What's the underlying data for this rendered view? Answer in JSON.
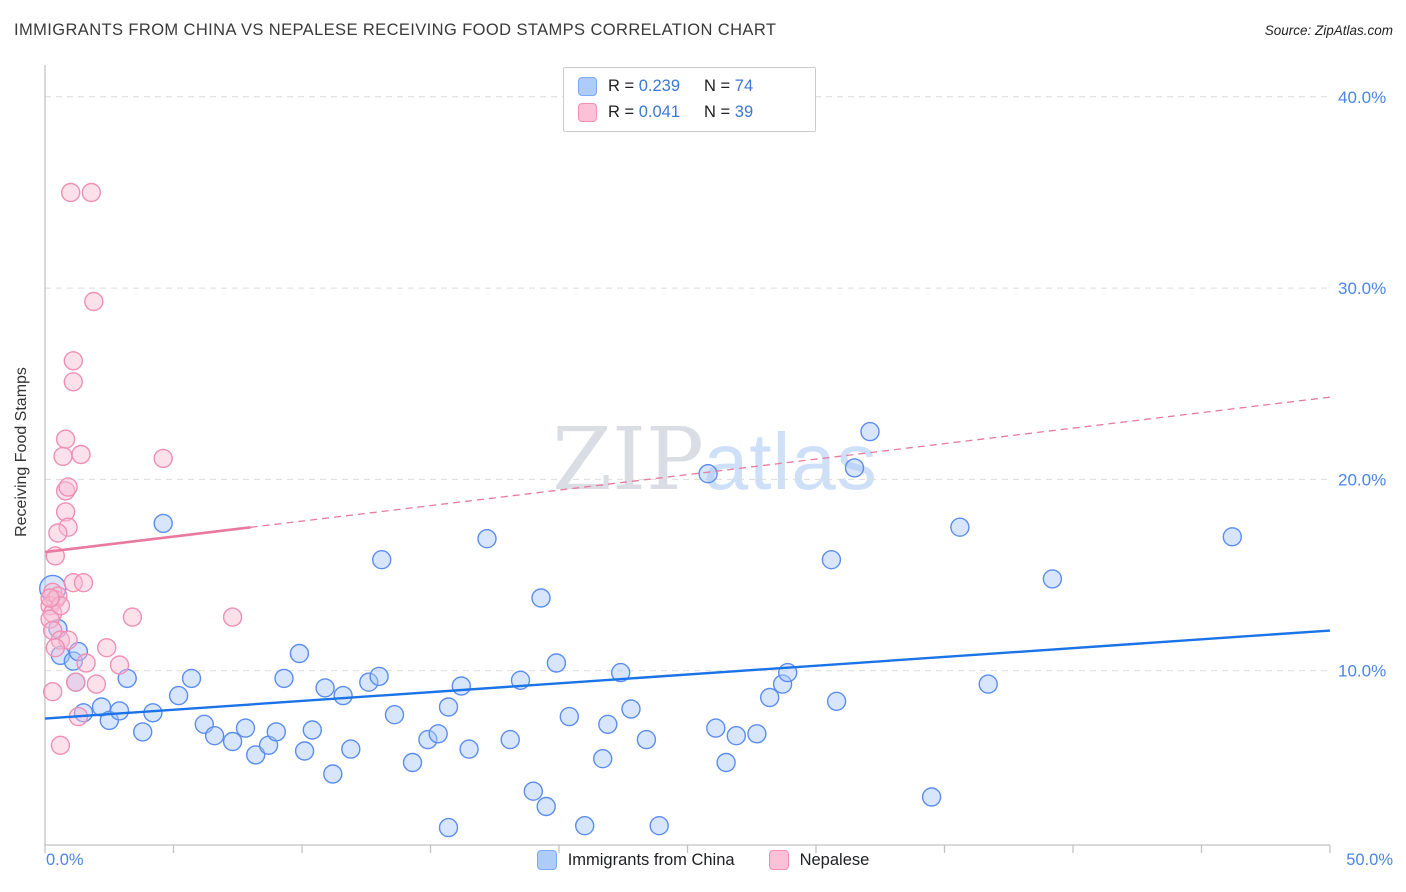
{
  "title": "IMMIGRANTS FROM CHINA VS NEPALESE RECEIVING FOOD STAMPS CORRELATION CHART",
  "source": "Source: ZipAtlas.com",
  "watermark": {
    "zip": "ZIP",
    "atlas": "atlas"
  },
  "colors": {
    "accent_blue": "#4a86e8",
    "grid": "#dcdcdc",
    "axis": "#c2c2c2",
    "trend_blue": "#1a73e8",
    "trend_pink": "#e8799f",
    "point_blue_fill": "#a8c7fa",
    "point_blue_stroke": "#5b8def",
    "point_pink_fill": "#f9bdd3",
    "point_pink_stroke": "#ef8fb4"
  },
  "legend": {
    "rows": [
      {
        "r_prefix": "R = ",
        "r_value": "0.239",
        "n_prefix": "N = ",
        "n_value": "74"
      },
      {
        "r_prefix": "R = ",
        "r_value": "0.041",
        "n_prefix": "N = ",
        "n_value": "39"
      }
    ]
  },
  "axes": {
    "x_min_label": "0.0%",
    "x_max_label": "50.0%"
  },
  "chart_data": {
    "type": "scatter",
    "title": "IMMIGRANTS FROM CHINA VS NEPALESE RECEIVING FOOD STAMPS CORRELATION CHART",
    "xlabel": "",
    "ylabel": "Receiving Food Stamps",
    "xlim": [
      0,
      50
    ],
    "ylim": [
      0,
      42
    ],
    "x_tick_step": 5,
    "grid": "dashed-horizontal",
    "legend_position": "bottom-center",
    "y_ticks": [
      {
        "value": 10,
        "label": "10.0%"
      },
      {
        "value": 20,
        "label": "20.0%"
      },
      {
        "value": 30,
        "label": "30.0%"
      },
      {
        "value": 40,
        "label": "40.0%"
      }
    ],
    "series": [
      {
        "name": "Immigrants from China",
        "key": "china",
        "r": 0.239,
        "n": 74,
        "fill": "#a8c7fa",
        "stroke": "#5b8def",
        "trend": {
          "x0": 0,
          "y0": 7.5,
          "x1": 50,
          "y1": 12.1,
          "style": "solid"
        },
        "points": [
          [
            0.3,
            14.3,
            13
          ],
          [
            0.5,
            12.2
          ],
          [
            0.6,
            10.8
          ],
          [
            1.1,
            10.5
          ],
          [
            1.3,
            11.0
          ],
          [
            1.2,
            9.4
          ],
          [
            1.5,
            7.8
          ],
          [
            2.2,
            8.1
          ],
          [
            2.5,
            7.4
          ],
          [
            2.9,
            7.9
          ],
          [
            3.2,
            9.6
          ],
          [
            3.8,
            6.8
          ],
          [
            4.2,
            7.8
          ],
          [
            4.6,
            17.7
          ],
          [
            5.2,
            8.7
          ],
          [
            5.7,
            9.6
          ],
          [
            6.2,
            7.2
          ],
          [
            6.6,
            6.6
          ],
          [
            7.3,
            6.3
          ],
          [
            7.8,
            7.0
          ],
          [
            8.2,
            5.6
          ],
          [
            8.7,
            6.1
          ],
          [
            9.0,
            6.8
          ],
          [
            9.3,
            9.6
          ],
          [
            9.9,
            10.9
          ],
          [
            10.1,
            5.8
          ],
          [
            10.4,
            6.9
          ],
          [
            10.9,
            9.1
          ],
          [
            11.2,
            4.6
          ],
          [
            11.6,
            8.7
          ],
          [
            11.9,
            5.9
          ],
          [
            12.6,
            9.4
          ],
          [
            13.0,
            9.7
          ],
          [
            13.1,
            15.8
          ],
          [
            13.6,
            7.7
          ],
          [
            14.3,
            5.2
          ],
          [
            14.9,
            6.4
          ],
          [
            15.3,
            6.7
          ],
          [
            15.7,
            8.1
          ],
          [
            15.7,
            1.8
          ],
          [
            16.2,
            9.2
          ],
          [
            16.5,
            5.9
          ],
          [
            17.2,
            16.9
          ],
          [
            18.1,
            6.4
          ],
          [
            18.5,
            9.5
          ],
          [
            19.0,
            3.7
          ],
          [
            19.3,
            13.8
          ],
          [
            19.5,
            2.9
          ],
          [
            19.9,
            10.4
          ],
          [
            20.4,
            7.6
          ],
          [
            21.0,
            1.9
          ],
          [
            21.7,
            5.4
          ],
          [
            21.9,
            7.2
          ],
          [
            22.4,
            9.9
          ],
          [
            22.8,
            8.0
          ],
          [
            23.4,
            6.4
          ],
          [
            23.9,
            1.9
          ],
          [
            25.8,
            20.3
          ],
          [
            26.1,
            7.0
          ],
          [
            26.5,
            5.2
          ],
          [
            26.9,
            6.6
          ],
          [
            27.7,
            6.7
          ],
          [
            28.2,
            8.6
          ],
          [
            28.7,
            9.3
          ],
          [
            28.9,
            9.9
          ],
          [
            30.6,
            15.8
          ],
          [
            30.8,
            8.4
          ],
          [
            31.5,
            20.6
          ],
          [
            32.1,
            22.5
          ],
          [
            34.5,
            3.4
          ],
          [
            35.6,
            17.5
          ],
          [
            36.7,
            9.3
          ],
          [
            39.2,
            14.8
          ],
          [
            46.2,
            17.0
          ]
        ]
      },
      {
        "name": "Nepalese",
        "key": "nepalese",
        "r": 0.041,
        "n": 39,
        "fill": "#f9bdd3",
        "stroke": "#ef8fb4",
        "trend": {
          "x0": 0,
          "y0": 16.2,
          "x1": 50,
          "y1": 24.3,
          "style": "solid-then-dashed",
          "solid_until": 8
        },
        "points": [
          [
            1.0,
            35.0
          ],
          [
            1.8,
            35.0
          ],
          [
            1.9,
            29.3
          ],
          [
            1.1,
            26.2
          ],
          [
            1.1,
            25.1
          ],
          [
            0.8,
            22.1
          ],
          [
            0.7,
            21.2
          ],
          [
            1.4,
            21.3
          ],
          [
            4.6,
            21.1
          ],
          [
            0.8,
            19.4
          ],
          [
            0.9,
            19.6
          ],
          [
            0.8,
            18.3
          ],
          [
            0.9,
            17.5
          ],
          [
            0.5,
            17.2
          ],
          [
            0.4,
            16.0
          ],
          [
            0.3,
            14.1
          ],
          [
            0.4,
            13.7
          ],
          [
            0.2,
            13.4
          ],
          [
            0.3,
            13.0
          ],
          [
            0.2,
            12.7
          ],
          [
            0.5,
            13.9
          ],
          [
            0.6,
            13.4
          ],
          [
            1.1,
            14.6
          ],
          [
            1.5,
            14.6
          ],
          [
            0.3,
            12.1
          ],
          [
            0.6,
            11.6
          ],
          [
            0.9,
            11.6
          ],
          [
            0.4,
            11.2
          ],
          [
            1.2,
            9.4
          ],
          [
            1.3,
            7.6
          ],
          [
            2.4,
            11.2
          ],
          [
            2.9,
            10.3
          ],
          [
            3.4,
            12.8
          ],
          [
            7.3,
            12.8
          ],
          [
            0.3,
            8.9
          ],
          [
            0.6,
            6.1
          ],
          [
            2.0,
            9.3
          ],
          [
            1.6,
            10.4
          ],
          [
            0.2,
            13.8
          ]
        ]
      }
    ]
  }
}
